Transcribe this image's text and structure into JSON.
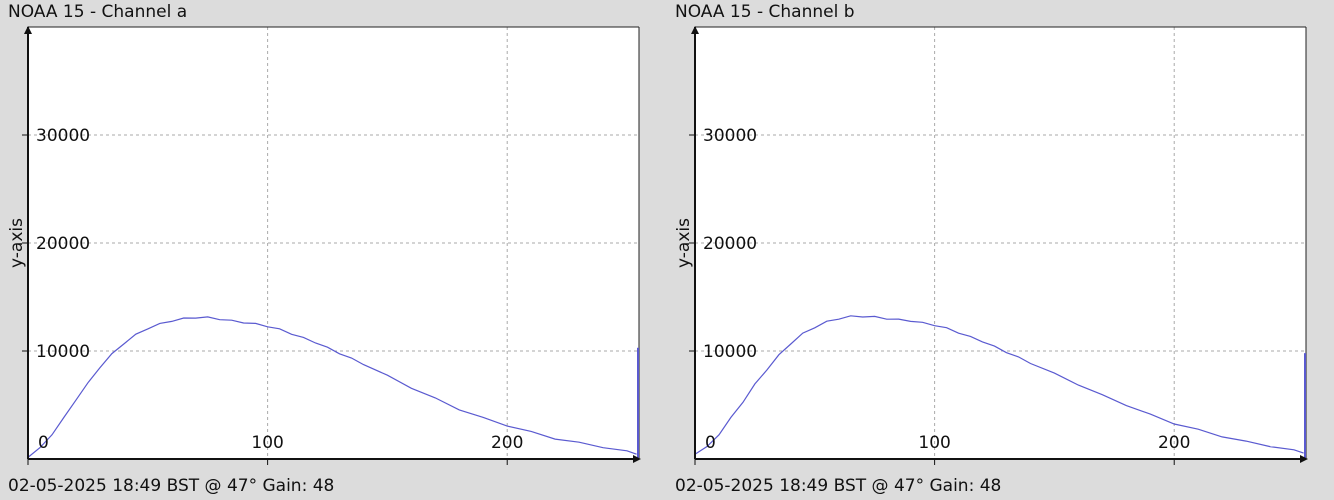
{
  "chart_data": [
    {
      "type": "line",
      "title": "NOAA 15 - Channel a",
      "ylabel": "y-axis",
      "xlabel": "",
      "footer": "02-05-2025 18:49 BST @ 47° Gain: 48",
      "xlim": [
        0,
        255
      ],
      "ylim": [
        0,
        40000
      ],
      "x_ticks": [
        0,
        100,
        200
      ],
      "y_ticks": [
        10000,
        20000,
        30000
      ],
      "grid": true,
      "series": [
        {
          "color": "#5a5ad0",
          "x": [
            0,
            5,
            10,
            15,
            20,
            25,
            30,
            35,
            40,
            45,
            50,
            55,
            60,
            65,
            70,
            75,
            80,
            85,
            90,
            95,
            100,
            105,
            110,
            115,
            120,
            125,
            130,
            135,
            140,
            150,
            160,
            170,
            180,
            190,
            200,
            210,
            220,
            230,
            240,
            250,
            254
          ],
          "y": [
            200,
            1000,
            2300,
            3800,
            5500,
            7000,
            8500,
            9700,
            10700,
            11500,
            12100,
            12500,
            12800,
            13000,
            13100,
            13100,
            12950,
            12800,
            12650,
            12500,
            12300,
            12000,
            11600,
            11200,
            10800,
            10300,
            9800,
            9300,
            8800,
            7700,
            6600,
            5600,
            4600,
            3800,
            3100,
            2500,
            1900,
            1500,
            1100,
            700,
            500
          ]
        }
      ],
      "spike": {
        "x": 255,
        "y": 10300
      }
    },
    {
      "type": "line",
      "title": "NOAA 15 - Channel b",
      "ylabel": "y-axis",
      "xlabel": "",
      "footer": "02-05-2025 18:49 BST @ 47° Gain: 48",
      "xlim": [
        0,
        255
      ],
      "ylim": [
        0,
        40000
      ],
      "x_ticks": [
        0,
        100,
        200
      ],
      "y_ticks": [
        10000,
        20000,
        30000
      ],
      "grid": true,
      "series": [
        {
          "color": "#5a5ad0",
          "x": [
            0,
            5,
            10,
            15,
            20,
            25,
            30,
            35,
            40,
            45,
            50,
            55,
            60,
            65,
            70,
            75,
            80,
            85,
            90,
            95,
            100,
            105,
            110,
            115,
            120,
            125,
            130,
            135,
            140,
            150,
            160,
            170,
            180,
            190,
            200,
            210,
            220,
            230,
            240,
            250,
            254
          ],
          "y": [
            500,
            1100,
            2300,
            3800,
            5300,
            6900,
            8300,
            9600,
            10700,
            11600,
            12200,
            12700,
            13000,
            13200,
            13200,
            13150,
            13000,
            12900,
            12800,
            12600,
            12400,
            12100,
            11700,
            11300,
            10900,
            10400,
            9900,
            9400,
            8900,
            7900,
            6900,
            5900,
            5000,
            4100,
            3300,
            2700,
            2100,
            1600,
            1200,
            800,
            600
          ]
        }
      ],
      "spike": {
        "x": 255,
        "y": 9800
      }
    }
  ]
}
